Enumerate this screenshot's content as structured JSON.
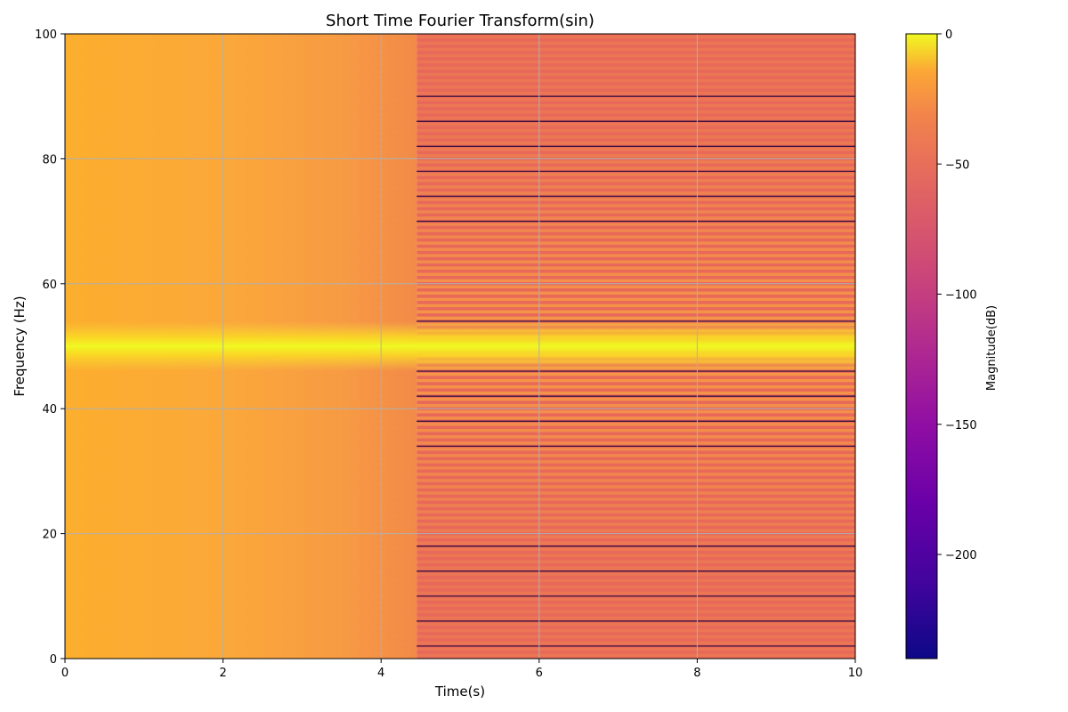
{
  "chart_data": {
    "type": "heatmap",
    "title": "Short Time Fourier Transform(sin)",
    "xlabel": "Time(s)",
    "ylabel": "Frequency (Hz)",
    "xlim": [
      0,
      10
    ],
    "ylim": [
      0,
      100
    ],
    "x_ticks": [
      "0",
      "2",
      "4",
      "6",
      "8",
      "10"
    ],
    "y_ticks": [
      "0",
      "20",
      "40",
      "60",
      "80",
      "100"
    ],
    "grid": true,
    "colormap": "plasma",
    "colorbar": {
      "label": "Magnitude(dB)",
      "range": [
        -240,
        0
      ],
      "ticks": [
        "0",
        "−50",
        "−100",
        "−150",
        "−200"
      ]
    },
    "signal_frequency_hz": 50,
    "transition_time_s": 4.45,
    "dark_band_frequencies_hz": [
      2,
      6,
      10,
      14,
      18,
      34,
      38,
      42,
      46,
      54,
      70,
      74,
      78,
      82,
      86,
      90
    ]
  }
}
